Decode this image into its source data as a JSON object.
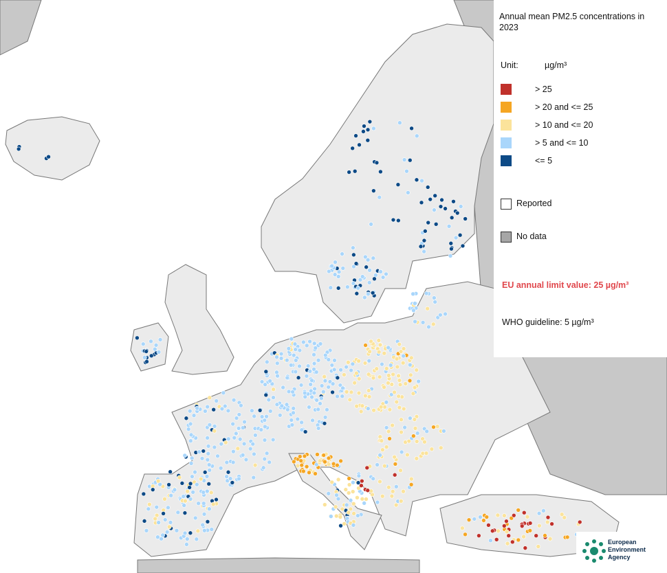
{
  "legend": {
    "title": "Annual mean PM2.5 concentrations in 2023",
    "unit_label": "Unit:",
    "unit": "µg/m³",
    "classes": [
      {
        "label": "> 25",
        "color": "#c0312b"
      },
      {
        "label": "> 20 and <= 25",
        "color": "#f5a623"
      },
      {
        "label": "> 10 and <= 20",
        "color": "#fbe39b"
      },
      {
        "label": "> 5 and <= 10",
        "color": "#a9d6fb"
      },
      {
        "label": "<= 5",
        "color": "#0d4a86"
      }
    ],
    "reported": "Reported",
    "no_data": "No data",
    "limit_note": "EU annual limit value: 25 µg/m³",
    "who_note": "WHO guideline: 5 µg/m³"
  },
  "logo": {
    "lines": [
      "European",
      "Environment",
      "Agency"
    ]
  }
}
